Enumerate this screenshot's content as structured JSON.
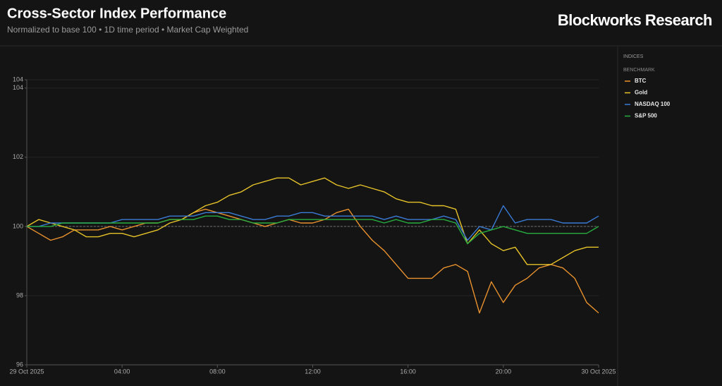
{
  "chart_data": {
    "type": "line",
    "title": "Cross-Sector Index Performance",
    "subtitle": "Normalized to base 100 • 1D time period • Market Cap Weighted",
    "x": [
      0,
      0.5,
      1,
      1.5,
      2,
      2.5,
      3,
      3.5,
      4,
      4.5,
      5,
      5.5,
      6,
      6.5,
      7,
      7.5,
      8,
      8.5,
      9,
      9.5,
      10,
      10.5,
      11,
      11.5,
      12,
      12.5,
      13,
      13.5,
      14,
      14.5,
      15,
      15.5,
      16,
      16.5,
      17,
      17.5,
      18,
      18.5,
      19,
      19.5,
      20,
      20.5,
      21,
      21.5,
      22,
      22.5,
      23,
      23.5,
      24
    ],
    "xlim": [
      0,
      24
    ],
    "xticks": [
      {
        "value": 0,
        "label": "29 Oct 2025"
      },
      {
        "value": 4,
        "label": "04:00"
      },
      {
        "value": 8,
        "label": "08:00"
      },
      {
        "value": 12,
        "label": "12:00"
      },
      {
        "value": 16,
        "label": "16:00"
      },
      {
        "value": 20,
        "label": "20:00"
      },
      {
        "value": 24,
        "label": "30 Oct 2025"
      }
    ],
    "ylim": [
      96,
      104.24
    ],
    "yticks": [
      96,
      98,
      100,
      102,
      104,
      {
        "value": 104.24,
        "label": "104"
      }
    ],
    "grid": true,
    "baseline": 100,
    "series": [
      {
        "name": "BTC",
        "color": "#e8912d",
        "values": [
          100,
          99.8,
          99.6,
          99.7,
          99.9,
          99.9,
          99.9,
          100.0,
          99.9,
          100.0,
          100.1,
          100.1,
          100.2,
          100.2,
          100.4,
          100.5,
          100.4,
          100.3,
          100.2,
          100.1,
          100.0,
          100.1,
          100.2,
          100.1,
          100.1,
          100.2,
          100.4,
          100.5,
          100.0,
          99.6,
          99.3,
          98.9,
          98.5,
          98.5,
          98.5,
          98.8,
          98.9,
          98.7,
          97.5,
          98.4,
          97.8,
          98.3,
          98.5,
          98.8,
          98.9,
          98.8,
          98.5,
          97.8,
          97.5
        ]
      },
      {
        "name": "Gold",
        "color": "#e6c229",
        "values": [
          100,
          100.2,
          100.1,
          100.0,
          99.9,
          99.7,
          99.7,
          99.8,
          99.8,
          99.7,
          99.8,
          99.9,
          100.1,
          100.2,
          100.4,
          100.6,
          100.7,
          100.9,
          101.0,
          101.2,
          101.3,
          101.4,
          101.4,
          101.2,
          101.3,
          101.4,
          101.2,
          101.1,
          101.2,
          101.1,
          101.0,
          100.8,
          100.7,
          100.7,
          100.6,
          100.6,
          100.5,
          99.5,
          99.9,
          99.5,
          99.3,
          99.4,
          98.9,
          98.9,
          98.9,
          99.1,
          99.3,
          99.4,
          99.4
        ]
      },
      {
        "name": "NASDAQ 100",
        "color": "#3a7bd5",
        "values": [
          100,
          100.0,
          100.1,
          100.1,
          100.1,
          100.1,
          100.1,
          100.1,
          100.2,
          100.2,
          100.2,
          100.2,
          100.3,
          100.3,
          100.3,
          100.4,
          100.4,
          100.4,
          100.3,
          100.2,
          100.2,
          100.3,
          100.3,
          100.4,
          100.4,
          100.3,
          100.3,
          100.3,
          100.3,
          100.3,
          100.2,
          100.3,
          100.2,
          100.2,
          100.2,
          100.3,
          100.2,
          99.6,
          100.0,
          99.9,
          100.6,
          100.1,
          100.2,
          100.2,
          100.2,
          100.1,
          100.1,
          100.1,
          100.3
        ]
      },
      {
        "name": "S&P 500",
        "color": "#27ae3f",
        "values": [
          100,
          100.0,
          100.0,
          100.1,
          100.1,
          100.1,
          100.1,
          100.1,
          100.1,
          100.1,
          100.1,
          100.1,
          100.2,
          100.2,
          100.2,
          100.3,
          100.3,
          100.2,
          100.2,
          100.1,
          100.1,
          100.1,
          100.2,
          100.2,
          100.2,
          100.2,
          100.2,
          100.2,
          100.2,
          100.2,
          100.1,
          100.2,
          100.1,
          100.1,
          100.2,
          100.2,
          100.1,
          99.5,
          99.8,
          99.9,
          100.0,
          99.9,
          99.8,
          99.8,
          99.8,
          99.8,
          99.8,
          99.8,
          100.0
        ]
      }
    ]
  },
  "brand": "Blockworks Research",
  "legend_panel": {
    "heading": "INDICES",
    "group": "BENCHMARK"
  }
}
